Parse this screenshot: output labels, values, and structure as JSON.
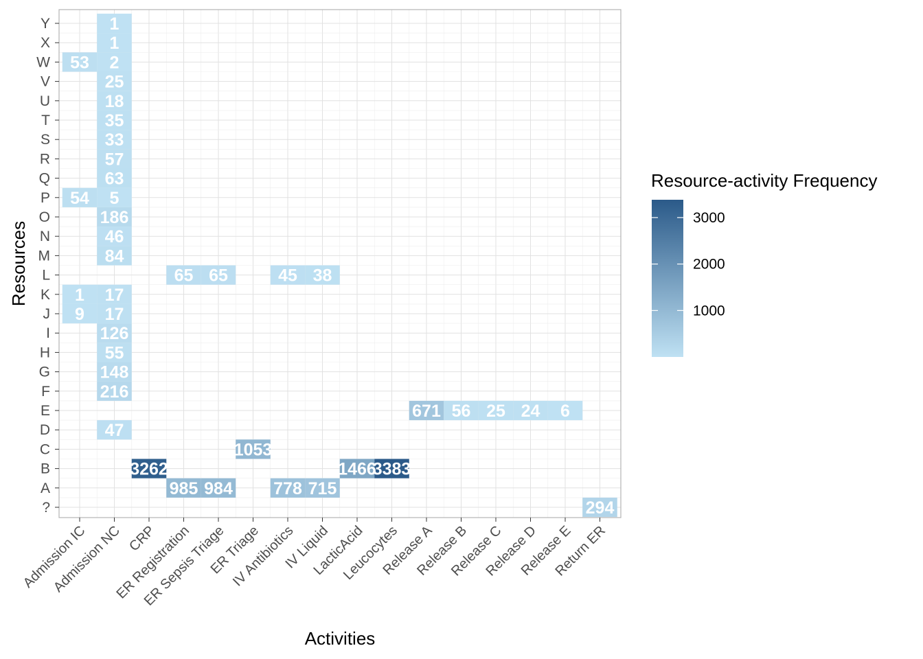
{
  "chart_data": {
    "type": "heatmap",
    "title": "",
    "xlabel": "Activities",
    "ylabel": "Resources",
    "x_categories": [
      "Admission IC",
      "Admission NC",
      "CRP",
      "ER Registration",
      "ER Sepsis Triage",
      "ER Triage",
      "IV Antibiotics",
      "IV Liquid",
      "LacticAcid",
      "Leucocytes",
      "Release A",
      "Release B",
      "Release C",
      "Release D",
      "Release E",
      "Return ER"
    ],
    "y_categories": [
      "?",
      "A",
      "B",
      "C",
      "D",
      "E",
      "F",
      "G",
      "H",
      "I",
      "J",
      "K",
      "L",
      "M",
      "N",
      "O",
      "P",
      "Q",
      "R",
      "S",
      "T",
      "U",
      "V",
      "W",
      "X",
      "Y"
    ],
    "cells": [
      {
        "x": "Admission NC",
        "y": "Y",
        "value": 1,
        "label": "1"
      },
      {
        "x": "Admission NC",
        "y": "X",
        "value": 1,
        "label": "1"
      },
      {
        "x": "Admission IC",
        "y": "W",
        "value": 53,
        "label": "53"
      },
      {
        "x": "Admission NC",
        "y": "W",
        "value": 2,
        "label": "2"
      },
      {
        "x": "Admission NC",
        "y": "V",
        "value": 25,
        "label": "25"
      },
      {
        "x": "Admission NC",
        "y": "U",
        "value": 18,
        "label": "18"
      },
      {
        "x": "Admission NC",
        "y": "T",
        "value": 35,
        "label": "35"
      },
      {
        "x": "Admission NC",
        "y": "S",
        "value": 33,
        "label": "33"
      },
      {
        "x": "Admission NC",
        "y": "R",
        "value": 57,
        "label": "57"
      },
      {
        "x": "Admission NC",
        "y": "Q",
        "value": 63,
        "label": "63"
      },
      {
        "x": "Admission IC",
        "y": "P",
        "value": 54,
        "label": "54"
      },
      {
        "x": "Admission NC",
        "y": "P",
        "value": 5,
        "label": "5"
      },
      {
        "x": "Admission NC",
        "y": "O",
        "value": 186,
        "label": "186"
      },
      {
        "x": "Admission NC",
        "y": "N",
        "value": 46,
        "label": "46"
      },
      {
        "x": "Admission NC",
        "y": "M",
        "value": 84,
        "label": "84"
      },
      {
        "x": "ER Registration",
        "y": "L",
        "value": 65,
        "label": "65"
      },
      {
        "x": "ER Sepsis Triage",
        "y": "L",
        "value": 65,
        "label": "65"
      },
      {
        "x": "IV Antibiotics",
        "y": "L",
        "value": 45,
        "label": "45"
      },
      {
        "x": "IV Liquid",
        "y": "L",
        "value": 38,
        "label": "38"
      },
      {
        "x": "Admission IC",
        "y": "K",
        "value": 1,
        "label": "1"
      },
      {
        "x": "Admission NC",
        "y": "K",
        "value": 17,
        "label": "17"
      },
      {
        "x": "Admission IC",
        "y": "J",
        "value": 9,
        "label": "9"
      },
      {
        "x": "Admission NC",
        "y": "J",
        "value": 17,
        "label": "17"
      },
      {
        "x": "Admission NC",
        "y": "I",
        "value": 126,
        "label": "126"
      },
      {
        "x": "Admission NC",
        "y": "H",
        "value": 55,
        "label": "55"
      },
      {
        "x": "Admission NC",
        "y": "G",
        "value": 148,
        "label": "148"
      },
      {
        "x": "Admission NC",
        "y": "F",
        "value": 216,
        "label": "216"
      },
      {
        "x": "Release A",
        "y": "E",
        "value": 671,
        "label": "671"
      },
      {
        "x": "Release B",
        "y": "E",
        "value": 56,
        "label": "56"
      },
      {
        "x": "Release C",
        "y": "E",
        "value": 25,
        "label": "25"
      },
      {
        "x": "Release D",
        "y": "E",
        "value": 24,
        "label": "24"
      },
      {
        "x": "Release E",
        "y": "E",
        "value": 6,
        "label": "6"
      },
      {
        "x": "Admission NC",
        "y": "D",
        "value": 47,
        "label": "47"
      },
      {
        "x": "ER Triage",
        "y": "C",
        "value": 1053,
        "label": "1053"
      },
      {
        "x": "CRP",
        "y": "B",
        "value": 3262,
        "label": "3262"
      },
      {
        "x": "LacticAcid",
        "y": "B",
        "value": 1466,
        "label": "1466"
      },
      {
        "x": "Leucocytes",
        "y": "B",
        "value": 3383,
        "label": "3383"
      },
      {
        "x": "ER Registration",
        "y": "A",
        "value": 985,
        "label": "985"
      },
      {
        "x": "ER Sepsis Triage",
        "y": "A",
        "value": 984,
        "label": "984"
      },
      {
        "x": "IV Antibiotics",
        "y": "A",
        "value": 778,
        "label": "778"
      },
      {
        "x": "IV Liquid",
        "y": "A",
        "value": 715,
        "label": "715"
      },
      {
        "x": "Return ER",
        "y": "?",
        "value": 294,
        "label": "294"
      }
    ],
    "legend": {
      "title": "Resource-activity Frequency",
      "ticks": [
        1000,
        2000,
        3000
      ],
      "range": [
        1,
        3383
      ],
      "low_color": "#bfe1f3",
      "high_color": "#2b5a89",
      "placement": "right"
    },
    "grid": true,
    "background": "#ffffff",
    "grid_color": "#e1e1e1"
  }
}
